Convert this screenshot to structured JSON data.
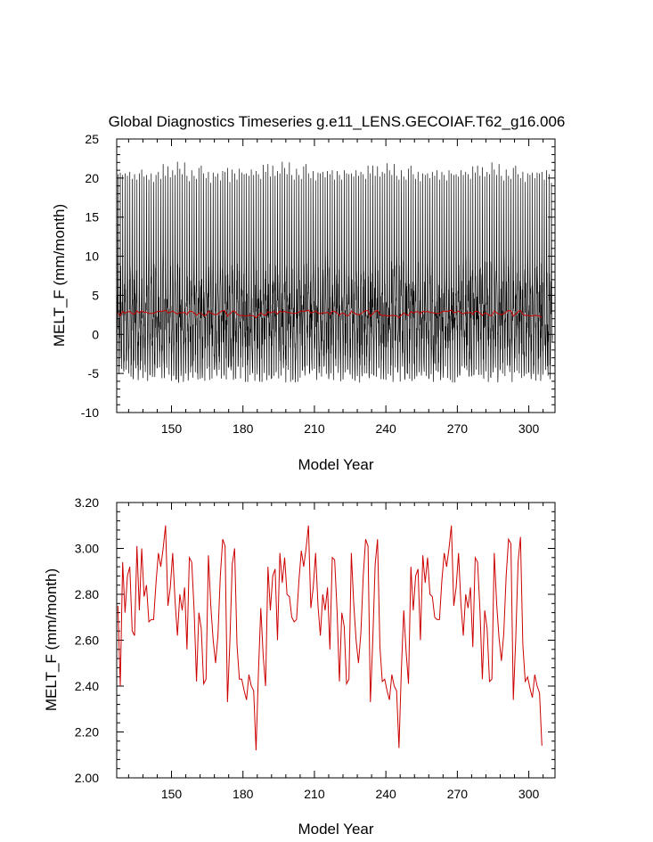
{
  "chart_data": [
    {
      "type": "line",
      "title": "Global Diagnostics Timeseries g.e11_LENS.GECOIAF.T62_g16.006",
      "xlabel": "Model Year",
      "ylabel": "MELT_F (mm/month)",
      "xlim": [
        127,
        311
      ],
      "ylim": [
        -10,
        25
      ],
      "x_ticks": [
        150,
        180,
        210,
        240,
        270,
        300
      ],
      "y_ticks": [
        -10,
        -5,
        0,
        5,
        10,
        15,
        20,
        25
      ],
      "grid": false,
      "legend": "none",
      "series": [
        {
          "kind": "monthly",
          "color": "#000000",
          "x_start": 127,
          "peak_max_values": [
            20.5,
            20.7,
            20.4,
            20.6,
            20.3,
            20.8,
            19.9,
            20.5,
            19.8,
            20.6,
            21.1,
            20.2,
            20.4,
            19.8,
            20.6,
            19.5,
            20.4,
            20.8,
            19.9,
            21.8,
            20.3,
            21.5,
            20.1,
            21.0,
            20.4,
            22.1,
            21.2,
            20.5,
            22.0,
            20.3,
            19.6,
            21.0,
            20.3,
            19.9,
            21.3,
            21.6,
            20.6,
            20.0,
            20.8,
            19.4,
            20.7,
            20.2,
            20.6,
            19.7,
            20.9,
            20.8,
            21.3,
            19.5,
            21.1,
            20.6,
            19.8,
            21.2,
            20.7,
            20.5,
            20.6,
            20.3,
            21.1,
            20.4,
            20.9,
            20.5,
            19.9,
            21.7,
            20.8,
            21.8,
            20.2,
            21.6,
            20.3,
            20.9,
            20.6,
            22.1,
            21.3,
            20.5,
            22.0,
            20.4,
            19.8,
            21.2,
            20.4,
            19.9,
            21.5,
            21.8,
            20.6,
            20.0,
            20.9,
            19.7,
            20.7,
            20.6,
            20.8,
            20.1,
            20.9,
            20.5,
            21.0,
            19.8,
            20.9,
            20.4,
            19.8,
            21.0,
            20.6,
            20.5,
            20.6,
            20.2,
            21.0,
            20.3,
            20.8,
            20.5,
            19.9,
            21.6,
            20.6,
            21.6,
            20.3,
            21.5,
            20.2,
            20.8,
            20.6,
            21.9,
            21.0,
            20.4,
            21.8,
            20.3,
            19.8,
            21.0,
            20.2,
            19.8,
            21.2,
            21.6,
            20.5,
            19.9,
            20.8,
            19.6,
            20.6,
            20.4,
            20.6,
            20.0,
            20.8,
            20.3,
            21.0,
            19.8,
            20.8,
            20.4,
            19.7,
            21.0,
            20.6,
            20.4,
            20.5,
            20.2,
            21.0,
            20.4,
            20.8,
            20.5,
            19.9,
            21.5,
            20.7,
            21.6,
            20.3,
            21.4,
            20.2,
            20.8,
            20.5,
            22.0,
            21.1,
            20.4,
            21.8,
            20.3,
            19.7,
            21.1,
            20.3,
            19.9,
            21.3,
            21.6,
            20.5,
            20.0,
            20.8,
            19.5,
            20.6,
            20.4,
            20.7,
            20.0,
            20.7,
            20.6,
            20.8,
            19.8,
            21.0,
            20.5,
            19.4
          ],
          "typical_range_note": ""
        },
        {
          "kind": "annual-mean",
          "color": "#cc0000",
          "values": [
            2.75,
            2.4,
            2.94,
            2.72,
            2.88,
            2.92,
            2.64,
            2.62,
            3.01,
            2.73,
            3.0,
            2.79,
            2.84,
            2.68,
            2.69,
            2.69,
            2.85,
            2.98,
            2.92,
            3.0,
            3.1,
            2.75,
            2.83,
            2.98,
            2.77,
            2.62,
            2.8,
            2.73,
            2.83,
            2.56,
            2.96,
            2.94,
            2.73,
            2.42,
            2.72,
            2.65,
            2.41,
            2.43,
            2.97,
            2.75,
            2.6,
            2.5,
            2.62,
            2.88,
            3.04,
            3.01,
            2.33,
            2.59,
            2.93,
            3.0,
            2.58,
            2.43,
            2.43,
            2.38,
            2.34,
            2.45,
            2.4,
            2.38,
            2.12,
            2.46,
            2.74,
            2.53,
            2.4,
            2.92,
            2.73,
            2.88,
            2.91,
            2.6,
            2.98,
            2.85,
            2.96,
            2.8,
            2.79,
            2.7,
            2.68,
            2.69,
            2.86,
            2.99,
            2.92,
            3.0,
            3.1,
            2.74,
            2.83,
            2.98,
            2.75,
            2.62,
            2.8,
            2.73,
            2.83,
            2.56,
            2.96,
            2.95,
            2.73,
            2.42,
            2.72,
            2.66,
            2.41,
            2.43,
            2.98,
            2.76,
            2.6,
            2.5,
            2.63,
            2.88,
            3.04,
            3.01,
            2.33,
            2.6,
            2.93,
            3.04,
            2.57,
            2.42,
            2.43,
            2.38,
            2.34,
            2.45,
            2.4,
            2.38,
            2.13,
            2.47,
            2.73,
            2.55,
            2.41,
            2.92,
            2.73,
            2.88,
            2.91,
            2.6,
            2.97,
            2.85,
            2.96,
            2.8,
            2.79,
            2.7,
            2.69,
            2.69,
            2.86,
            2.98,
            2.92,
            3.0,
            3.1,
            2.75,
            2.83,
            2.98,
            2.76,
            2.62,
            2.8,
            2.74,
            2.83,
            2.57,
            2.96,
            2.94,
            2.73,
            2.43,
            2.73,
            2.65,
            2.42,
            2.43,
            2.98,
            2.76,
            2.61,
            2.51,
            2.63,
            2.88,
            3.04,
            3.02,
            2.34,
            2.6,
            2.94,
            3.05,
            2.58,
            2.42,
            2.44,
            2.39,
            2.35,
            2.45,
            2.4,
            2.37,
            2.14
          ]
        }
      ]
    },
    {
      "type": "line",
      "title": "",
      "xlabel": "Model Year",
      "ylabel": "MELT_F (mm/month)",
      "xlim": [
        127,
        311
      ],
      "ylim": [
        2.0,
        3.2
      ],
      "x_ticks": [
        150,
        180,
        210,
        240,
        270,
        300
      ],
      "y_ticks": [
        "2.00",
        "2.20",
        "2.40",
        "2.60",
        "2.80",
        "3.00",
        "3.20"
      ],
      "grid": false,
      "legend": "none",
      "series": [
        {
          "kind": "annual-mean",
          "color": "#cc0000",
          "x_start": 127,
          "values_ref": "same as top panel annual-mean"
        }
      ]
    }
  ]
}
